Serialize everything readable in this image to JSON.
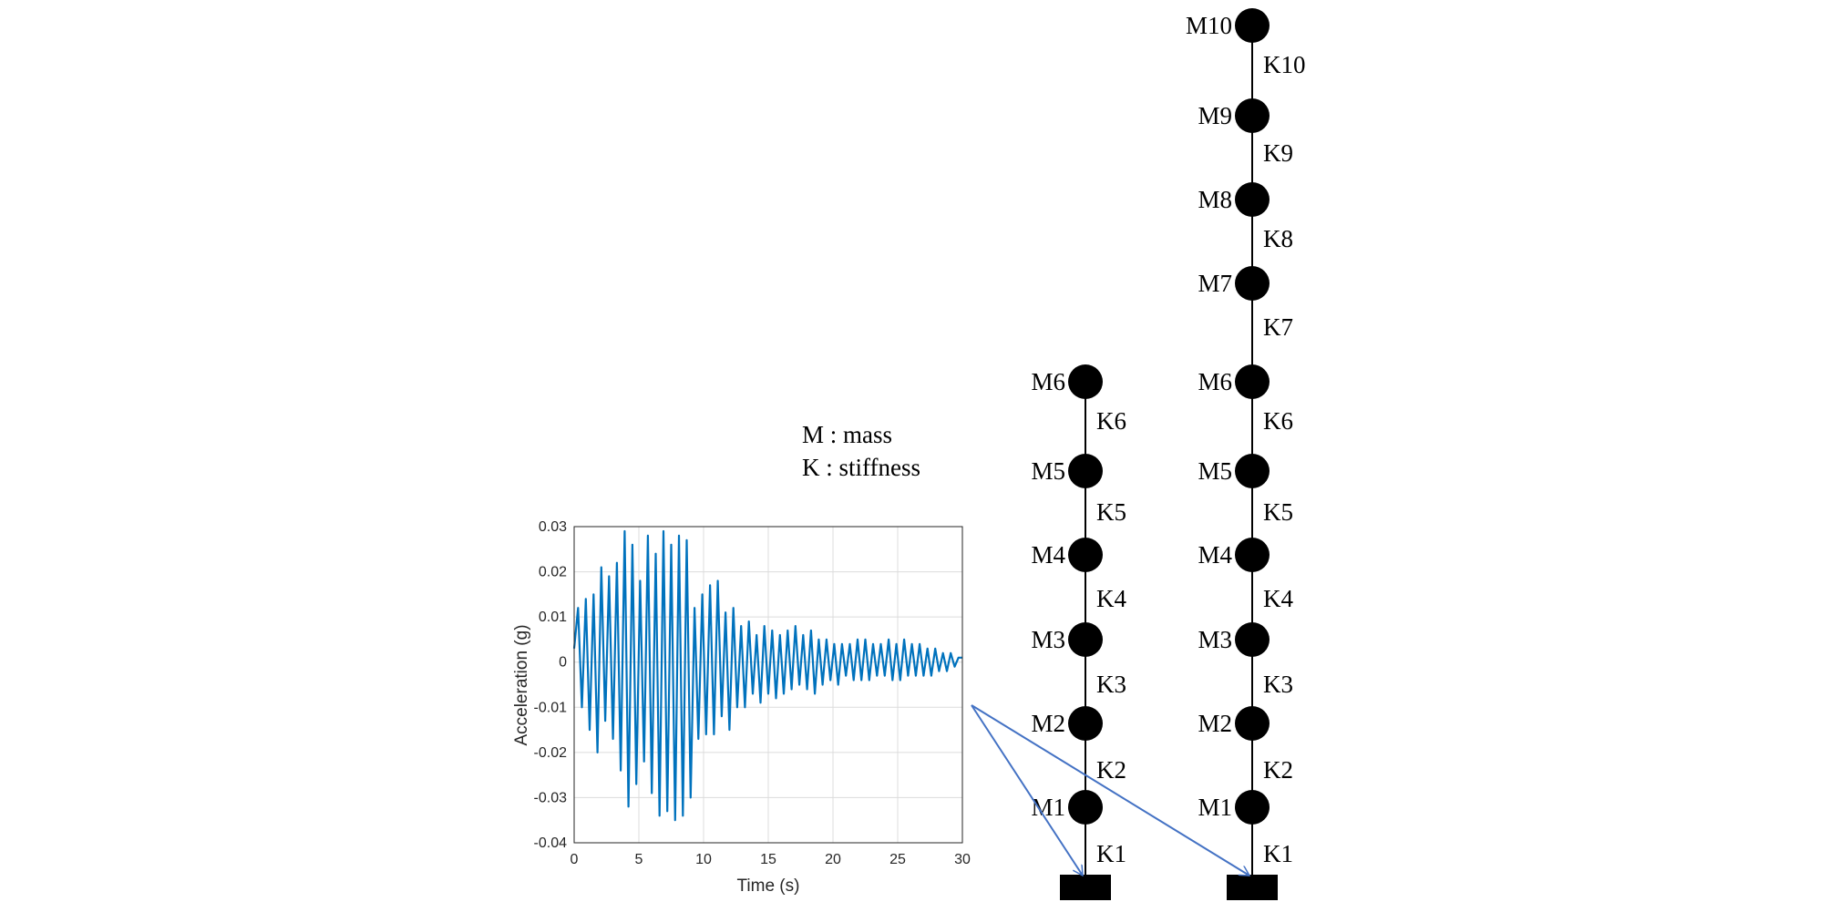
{
  "legend": {
    "mass_line": "M : mass",
    "stiffness_line": "K : stiffness"
  },
  "model_6": {
    "masses": [
      "M1",
      "M2",
      "M3",
      "M4",
      "M5",
      "M6"
    ],
    "springs": [
      "K1",
      "K2",
      "K3",
      "K4",
      "K5",
      "K6"
    ]
  },
  "model_10": {
    "masses": [
      "M1",
      "M2",
      "M3",
      "M4",
      "M5",
      "M6",
      "M7",
      "M8",
      "M9",
      "M10"
    ],
    "springs": [
      "K1",
      "K2",
      "K3",
      "K4",
      "K5",
      "K6",
      "K7",
      "K8",
      "K9",
      "K10"
    ]
  },
  "colors": {
    "signal": "#0072BD",
    "arrow": "#4472C4",
    "structure": "#000000"
  },
  "chart_data": {
    "type": "line",
    "title": "",
    "xlabel": "Time (s)",
    "ylabel": "Acceleration (g)",
    "xlim": [
      0,
      30
    ],
    "ylim": [
      -0.04,
      0.03
    ],
    "xticks": [
      "0",
      "5",
      "10",
      "15",
      "20",
      "25",
      "30"
    ],
    "yticks": [
      "0.03",
      "0.02",
      "0.01",
      "0",
      "-0.01",
      "-0.02",
      "-0.03",
      "-0.04"
    ],
    "grid": true,
    "series": [
      {
        "x": [
          0,
          0.3,
          0.6,
          0.9,
          1.2,
          1.5,
          1.8,
          2.1,
          2.4,
          2.7,
          3.0,
          3.3,
          3.6,
          3.9,
          4.2,
          4.5,
          4.8,
          5.1,
          5.4,
          5.7,
          6.0,
          6.3,
          6.6,
          6.9,
          7.2,
          7.5,
          7.8,
          8.1,
          8.4,
          8.7,
          9.0,
          9.3,
          9.6,
          9.9,
          10.2,
          10.5,
          10.8,
          11.1,
          11.4,
          11.7,
          12.0,
          12.3,
          12.6,
          12.9,
          13.2,
          13.5,
          13.8,
          14.1,
          14.4,
          14.7,
          15.0,
          15.3,
          15.6,
          15.9,
          16.2,
          16.5,
          16.8,
          17.1,
          17.4,
          17.7,
          18.0,
          18.3,
          18.6,
          18.9,
          19.2,
          19.5,
          19.8,
          20.1,
          20.4,
          20.7,
          21.0,
          21.3,
          21.6,
          21.9,
          22.2,
          22.5,
          22.8,
          23.1,
          23.4,
          23.7,
          24.0,
          24.3,
          24.6,
          24.9,
          25.2,
          25.5,
          25.8,
          26.1,
          26.4,
          26.7,
          27.0,
          27.3,
          27.6,
          27.9,
          28.2,
          28.5,
          28.8,
          29.1,
          29.4,
          29.7,
          30.0
        ],
        "values": [
          0.003,
          0.012,
          -0.01,
          0.014,
          -0.015,
          0.015,
          -0.02,
          0.021,
          -0.013,
          0.019,
          -0.017,
          0.022,
          -0.024,
          0.029,
          -0.032,
          0.026,
          -0.027,
          0.018,
          -0.022,
          0.028,
          -0.029,
          0.024,
          -0.034,
          0.029,
          -0.033,
          0.026,
          -0.035,
          0.028,
          -0.034,
          0.027,
          -0.03,
          0.012,
          -0.017,
          0.015,
          -0.016,
          0.017,
          -0.016,
          0.018,
          -0.012,
          0.011,
          -0.015,
          0.012,
          -0.01,
          0.008,
          -0.01,
          0.009,
          -0.007,
          0.006,
          -0.009,
          0.008,
          -0.007,
          0.007,
          -0.008,
          0.006,
          -0.007,
          0.007,
          -0.006,
          0.008,
          -0.005,
          0.006,
          -0.006,
          0.007,
          -0.007,
          0.005,
          -0.005,
          0.005,
          -0.004,
          0.004,
          -0.005,
          0.004,
          -0.003,
          0.004,
          -0.004,
          0.005,
          -0.004,
          0.005,
          -0.004,
          0.004,
          -0.003,
          0.004,
          -0.003,
          0.005,
          -0.004,
          0.004,
          -0.004,
          0.005,
          -0.003,
          0.004,
          -0.003,
          0.004,
          -0.003,
          0.003,
          -0.003,
          0.003,
          -0.002,
          0.002,
          -0.002,
          0.002,
          -0.001,
          0.001,
          0.001
        ]
      }
    ]
  }
}
